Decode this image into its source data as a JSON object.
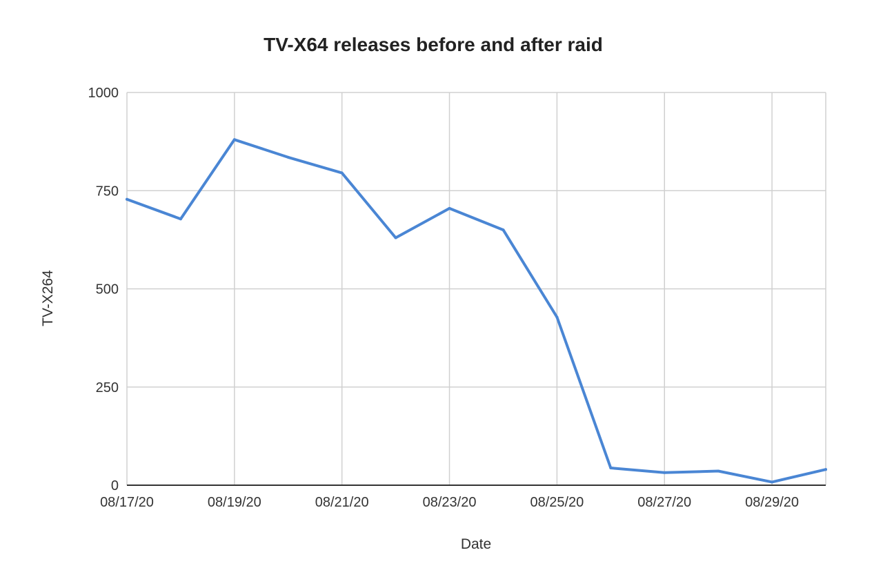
{
  "chart_data": {
    "type": "line",
    "title": "TV-X64 releases before and after raid",
    "xlabel": "Date",
    "ylabel": "TV-X264",
    "x_dates": [
      "08/17/20",
      "08/18/20",
      "08/19/20",
      "08/20/20",
      "08/21/20",
      "08/22/20",
      "08/23/20",
      "08/24/20",
      "08/25/20",
      "08/26/20",
      "08/27/20",
      "08/28/20",
      "08/29/20",
      "08/30/20"
    ],
    "x_tick_labels": [
      "08/17/20",
      "08/19/20",
      "08/21/20",
      "08/23/20",
      "08/25/20",
      "08/27/20",
      "08/29/20"
    ],
    "series": [
      {
        "values": [
          728,
          678,
          880,
          835,
          795,
          630,
          705,
          650,
          428,
          44,
          32,
          36,
          8,
          40
        ]
      }
    ],
    "ylim": [
      0,
      1000
    ],
    "y_ticks": [
      0,
      250,
      500,
      750,
      1000
    ],
    "y_tick_labels": [
      "0",
      "250",
      "500",
      "750",
      "1000"
    ],
    "grid": true,
    "line_color": "#4a86d4",
    "grid_color": "#d0d0d0",
    "axis_color": "#333333"
  }
}
